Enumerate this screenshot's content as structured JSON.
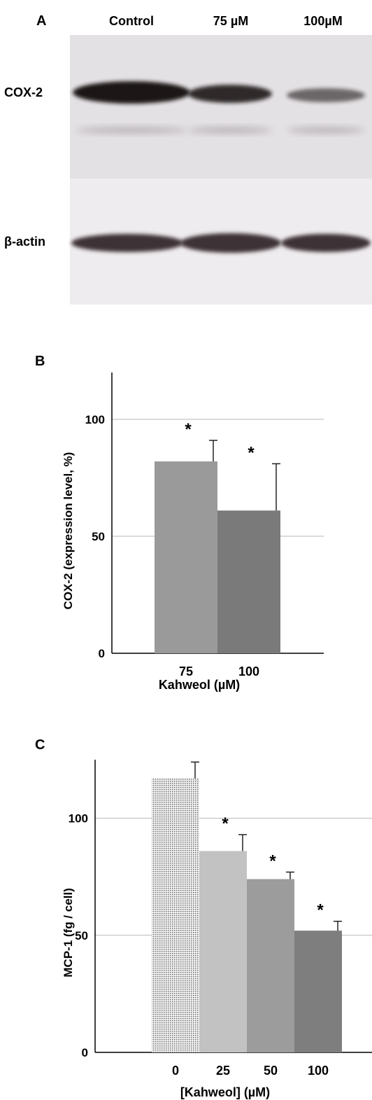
{
  "blot": {
    "panel_letter": "A",
    "lanes": [
      "Control",
      "75 µM",
      "100µM"
    ],
    "rows": [
      {
        "label": "COX-2",
        "intensity": [
          1.0,
          0.85,
          0.45
        ]
      },
      {
        "label": "β-actin",
        "intensity": [
          0.9,
          0.9,
          0.85
        ]
      }
    ]
  },
  "chart_data": [
    {
      "panel": "B",
      "type": "bar",
      "categories": [
        "75",
        "100"
      ],
      "values": [
        82,
        61
      ],
      "errors": [
        9,
        20
      ],
      "significance": [
        "*",
        "*"
      ],
      "xlabel": "Kahweol (µM)",
      "ylabel": "COX-2 (expression level, %)",
      "ylim": [
        0,
        120
      ],
      "yticks": [
        0,
        50,
        100
      ],
      "grid": true,
      "colors": [
        "#9a9a9a",
        "#7a7a7a"
      ]
    },
    {
      "panel": "C",
      "type": "bar",
      "categories": [
        "0",
        "25",
        "50",
        "100"
      ],
      "values": [
        117,
        86,
        74,
        52
      ],
      "errors": [
        7,
        7,
        3,
        4
      ],
      "significance": [
        "",
        "*",
        "*",
        "*"
      ],
      "xlabel": "[Kahweol] (µM)",
      "ylabel": "MCP-1 (fg / cell)",
      "ylim": [
        0,
        125
      ],
      "yticks": [
        0,
        50,
        100
      ],
      "grid": true,
      "colors": [
        "#dcdcdc",
        "#c2c2c2",
        "#9c9c9c",
        "#7e7e7e"
      ],
      "patterns": [
        "dotted",
        "solid",
        "solid",
        "solid"
      ]
    }
  ]
}
